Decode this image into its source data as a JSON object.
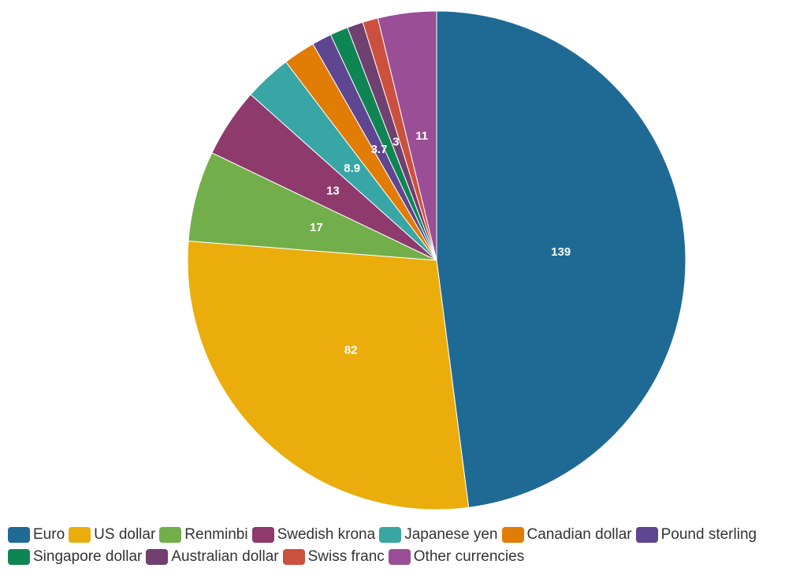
{
  "chart_data": {
    "type": "pie",
    "title": "",
    "slices": [
      {
        "name": "Euro",
        "value": 139,
        "label": "139",
        "color": "#1f6a95"
      },
      {
        "name": "US dollar",
        "value": 82,
        "label": "82",
        "color": "#eaad0c"
      },
      {
        "name": "Renminbi",
        "value": 17,
        "label": "17",
        "color": "#72ae4a"
      },
      {
        "name": "Swedish krona",
        "value": 13,
        "label": "13",
        "color": "#8e3a6d"
      },
      {
        "name": "Japanese yen",
        "value": 8.9,
        "label": "8.9",
        "color": "#38a6a5"
      },
      {
        "name": "Canadian dollar",
        "value": 6,
        "label": "",
        "color": "#e17c05"
      },
      {
        "name": "Pound sterling",
        "value": 3.7,
        "label": "3.7",
        "color": "#5f4690"
      },
      {
        "name": "Singapore dollar",
        "value": 3.4,
        "label": "",
        "color": "#0f8554"
      },
      {
        "name": "Australian dollar",
        "value": 3,
        "label": "3",
        "color": "#6f4070"
      },
      {
        "name": "Swiss franc",
        "value": 2.9,
        "label": "",
        "color": "#cc503e"
      },
      {
        "name": "Other currencies",
        "value": 11,
        "label": "11",
        "color": "#994e95"
      }
    ],
    "legend_position": "bottom"
  }
}
